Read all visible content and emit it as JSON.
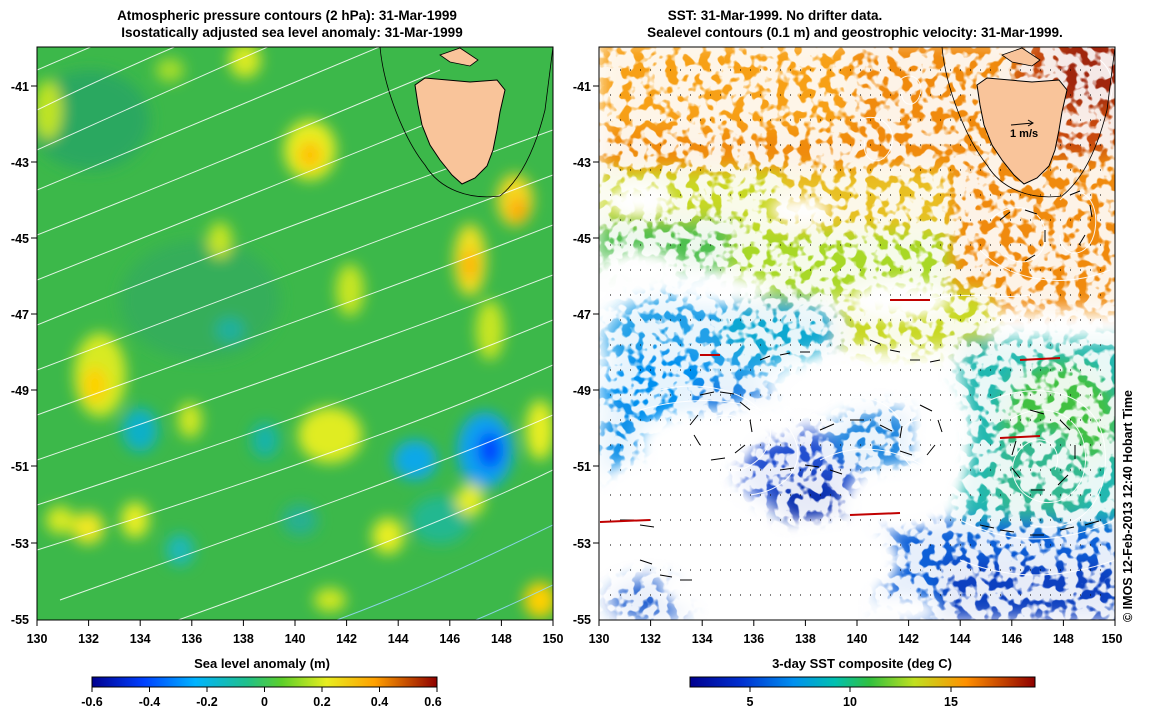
{
  "left_panel": {
    "title_line1": "Atmospheric pressure contours (2 hPa): 31-Mar-1999",
    "title_line2": "Isostatically adjusted sea level anomaly: 31-Mar-1999",
    "x_ticks": [
      "130",
      "132",
      "134",
      "136",
      "138",
      "140",
      "142",
      "144",
      "146",
      "148",
      "150"
    ],
    "y_ticks": [
      "-41",
      "-43",
      "-45",
      "-47",
      "-49",
      "-51",
      "-53",
      "-55"
    ],
    "colorbar": {
      "label": "Sea level anomaly (m)",
      "ticks": [
        "-0.6",
        "-0.4",
        "-0.2",
        "0",
        "0.2",
        "0.4",
        "0.6"
      ]
    }
  },
  "right_panel": {
    "title_line1": "SST: 31-Mar-1999. No drifter data.",
    "title_line2": "Sealevel contours (0.1 m) and geostrophic velocity: 31-Mar-1999.",
    "x_ticks": [
      "130",
      "132",
      "134",
      "136",
      "138",
      "140",
      "142",
      "144",
      "146",
      "148",
      "150"
    ],
    "y_ticks": [
      "-41",
      "-43",
      "-45",
      "-47",
      "-49",
      "-51",
      "-53",
      "-55"
    ],
    "velocity_key": "1 m/s",
    "colorbar": {
      "label": "3-day SST composite (deg C)",
      "ticks": [
        "5",
        "10",
        "15"
      ]
    }
  },
  "credit": "© IMOS 12-Feb-2013 12:40 Hobart Time",
  "colors": {
    "land": "#f9c49a",
    "sla_background": "#3cb84a",
    "sst_background": "#ffffff"
  }
}
